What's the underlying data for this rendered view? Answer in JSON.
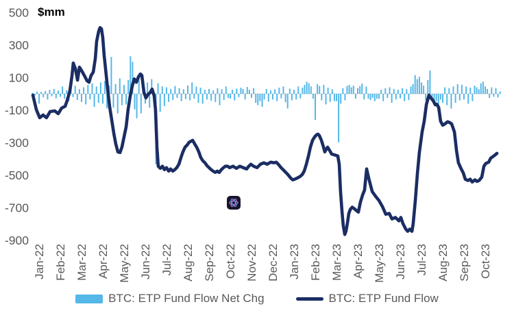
{
  "chart_data": {
    "type": "bar+line",
    "title": "",
    "unit_label": "$mm",
    "x_tick_labels": [
      "Jan-22",
      "Feb-22",
      "Mar-22",
      "Apr-22",
      "May-22",
      "Jun-22",
      "Jul-22",
      "Aug-22",
      "Sep-22",
      "Oct-22",
      "Nov-22",
      "Dec-22",
      "Jan-23",
      "Feb-23",
      "Mar-23",
      "Apr-23",
      "May-23",
      "Jun-23",
      "Jul-23",
      "Aug-23",
      "Sep-23",
      "Oct-23"
    ],
    "y_ticks": [
      500,
      300,
      100,
      -100,
      -300,
      -500,
      -700,
      -900
    ],
    "ylim": [
      -950,
      520
    ],
    "grid": "zero-line-only",
    "legend_position": "bottom-center",
    "style": {
      "bar_color": "#54b7e8",
      "line_color": "#1b2d63",
      "tick_text_color": "#595959",
      "zero_line_color": "#d9d9d9",
      "background": "#ffffff"
    },
    "series": [
      {
        "name": "BTC: ETP Fund Flow Net Chg",
        "type": "bar",
        "color": "#54b7e8",
        "x_start_month": -0.3,
        "x_step_month": 0.1,
        "values": [
          6,
          -10,
          14,
          -60,
          12,
          -22,
          18,
          -35,
          25,
          -15,
          30,
          -28,
          20,
          -18,
          45,
          -30,
          22,
          -45,
          35,
          -20,
          50,
          -38,
          28,
          -50,
          40,
          -65,
          55,
          -35,
          65,
          -80,
          45,
          -55,
          70,
          -60,
          80,
          -90,
          50,
          227,
          -85,
          60,
          -120,
          95,
          -70,
          55,
          -65,
          85,
          231,
          197,
          -95,
          -150,
          105,
          -120,
          80,
          -60,
          70,
          -85,
          90,
          -55,
          -433,
          65,
          -110,
          45,
          -75,
          40,
          -50,
          30,
          -38,
          48,
          -25,
          35,
          -45,
          28,
          -32,
          52,
          -40,
          70,
          -30,
          44,
          -55,
          38,
          -60,
          25,
          -35,
          30,
          -42,
          22,
          -50,
          35,
          -70,
          28,
          -38,
          45,
          -25,
          -30,
          25,
          -40,
          32,
          -20,
          38,
          30,
          -35,
          42,
          25,
          -25,
          35,
          -55,
          -70,
          -45,
          -80,
          -35,
          30,
          -48,
          22,
          -35,
          28,
          -45,
          38,
          -28,
          45,
          -52,
          -90,
          32,
          -40,
          25,
          -35,
          45,
          -28,
          38,
          55,
          75,
          65,
          45,
          -30,
          -160,
          60,
          48,
          -40,
          55,
          -65,
          38,
          -50,
          28,
          -45,
          -45,
          -298,
          -60,
          35,
          -40,
          48,
          55,
          40,
          50,
          -30,
          35,
          48,
          63,
          -35,
          45,
          -30,
          -38,
          -25,
          -45,
          -30,
          -30,
          25,
          -45,
          35,
          -25,
          40,
          -55,
          30,
          -35,
          25,
          -28,
          35,
          -45,
          28,
          -38,
          45,
          60,
          115,
          90,
          105,
          70,
          50,
          -40,
          85,
          143,
          -45,
          -60,
          -45,
          -80,
          -35,
          -55,
          40,
          -70,
          35,
          -90,
          45,
          -55,
          60,
          -40,
          55,
          -35,
          45,
          -60,
          38,
          -45,
          50,
          40,
          28,
          65,
          75,
          45,
          30,
          -25,
          40,
          -18,
          35,
          -22,
          15
        ]
      },
      {
        "name": "BTC: ETP Fund Flow",
        "type": "line",
        "color": "#1b2d63",
        "points": [
          [
            -0.29,
            -8
          ],
          [
            -0.13,
            -97
          ],
          [
            0.03,
            -147
          ],
          [
            0.19,
            -130
          ],
          [
            0.35,
            -147
          ],
          [
            0.52,
            -109
          ],
          [
            0.74,
            -105
          ],
          [
            0.9,
            -122
          ],
          [
            1.06,
            -88
          ],
          [
            1.23,
            -76
          ],
          [
            1.32,
            -42
          ],
          [
            1.45,
            17
          ],
          [
            1.55,
            113
          ],
          [
            1.61,
            189
          ],
          [
            1.71,
            155
          ],
          [
            1.81,
            84
          ],
          [
            1.9,
            164
          ],
          [
            2.0,
            143
          ],
          [
            2.13,
            113
          ],
          [
            2.26,
            80
          ],
          [
            2.35,
            71
          ],
          [
            2.45,
            113
          ],
          [
            2.55,
            134
          ],
          [
            2.65,
            218
          ],
          [
            2.71,
            323
          ],
          [
            2.81,
            386
          ],
          [
            2.87,
            407
          ],
          [
            2.94,
            399
          ],
          [
            3.0,
            344
          ],
          [
            3.06,
            239
          ],
          [
            3.13,
            155
          ],
          [
            3.23,
            29
          ],
          [
            3.32,
            -76
          ],
          [
            3.42,
            -160
          ],
          [
            3.52,
            -244
          ],
          [
            3.61,
            -307
          ],
          [
            3.71,
            -357
          ],
          [
            3.81,
            -361
          ],
          [
            3.9,
            -328
          ],
          [
            4.0,
            -265
          ],
          [
            4.1,
            -202
          ],
          [
            4.19,
            -97
          ],
          [
            4.29,
            -13
          ],
          [
            4.39,
            50
          ],
          [
            4.48,
            92
          ],
          [
            4.58,
            71
          ],
          [
            4.68,
            105
          ],
          [
            4.77,
            122
          ],
          [
            4.84,
            113
          ],
          [
            4.94,
            8
          ],
          [
            5.03,
            -25
          ],
          [
            5.13,
            -4
          ],
          [
            5.23,
            8
          ],
          [
            5.32,
            29
          ],
          [
            5.42,
            -13
          ],
          [
            5.48,
            -97
          ],
          [
            5.55,
            -328
          ],
          [
            5.61,
            -445
          ],
          [
            5.71,
            -458
          ],
          [
            5.81,
            -445
          ],
          [
            5.9,
            -466
          ],
          [
            6.0,
            -454
          ],
          [
            6.1,
            -475
          ],
          [
            6.19,
            -462
          ],
          [
            6.29,
            -475
          ],
          [
            6.39,
            -466
          ],
          [
            6.48,
            -454
          ],
          [
            6.58,
            -433
          ],
          [
            6.68,
            -391
          ],
          [
            6.77,
            -357
          ],
          [
            6.87,
            -328
          ],
          [
            6.97,
            -315
          ],
          [
            7.06,
            -298
          ],
          [
            7.16,
            -290
          ],
          [
            7.23,
            -286
          ],
          [
            7.32,
            -307
          ],
          [
            7.42,
            -328
          ],
          [
            7.52,
            -357
          ],
          [
            7.61,
            -391
          ],
          [
            7.71,
            -412
          ],
          [
            7.81,
            -424
          ],
          [
            7.9,
            -441
          ],
          [
            8.0,
            -454
          ],
          [
            8.1,
            -466
          ],
          [
            8.19,
            -475
          ],
          [
            8.29,
            -483
          ],
          [
            8.39,
            -475
          ],
          [
            8.48,
            -483
          ],
          [
            8.58,
            -466
          ],
          [
            8.68,
            -454
          ],
          [
            8.77,
            -445
          ],
          [
            8.87,
            -445
          ],
          [
            8.97,
            -454
          ],
          [
            9.13,
            -445
          ],
          [
            9.29,
            -458
          ],
          [
            9.45,
            -445
          ],
          [
            9.61,
            -454
          ],
          [
            9.77,
            -462
          ],
          [
            9.87,
            -445
          ],
          [
            9.97,
            -433
          ],
          [
            10.1,
            -445
          ],
          [
            10.26,
            -454
          ],
          [
            10.42,
            -433
          ],
          [
            10.58,
            -424
          ],
          [
            10.74,
            -433
          ],
          [
            10.9,
            -420
          ],
          [
            11.06,
            -424
          ],
          [
            11.16,
            -420
          ],
          [
            11.26,
            -433
          ],
          [
            11.39,
            -454
          ],
          [
            11.55,
            -475
          ],
          [
            11.71,
            -496
          ],
          [
            11.84,
            -517
          ],
          [
            11.94,
            -529
          ],
          [
            12.03,
            -525
          ],
          [
            12.16,
            -517
          ],
          [
            12.29,
            -508
          ],
          [
            12.39,
            -496
          ],
          [
            12.48,
            -475
          ],
          [
            12.58,
            -433
          ],
          [
            12.68,
            -382
          ],
          [
            12.77,
            -328
          ],
          [
            12.87,
            -286
          ],
          [
            12.97,
            -265
          ],
          [
            13.06,
            -252
          ],
          [
            13.13,
            -248
          ],
          [
            13.19,
            -256
          ],
          [
            13.29,
            -286
          ],
          [
            13.39,
            -328
          ],
          [
            13.45,
            -357
          ],
          [
            13.52,
            -340
          ],
          [
            13.58,
            -328
          ],
          [
            13.68,
            -349
          ],
          [
            13.77,
            -370
          ],
          [
            13.87,
            -374
          ],
          [
            13.97,
            -378
          ],
          [
            14.06,
            -382
          ],
          [
            14.13,
            -433
          ],
          [
            14.19,
            -601
          ],
          [
            14.26,
            -727
          ],
          [
            14.32,
            -811
          ],
          [
            14.39,
            -865
          ],
          [
            14.45,
            -844
          ],
          [
            14.52,
            -790
          ],
          [
            14.58,
            -735
          ],
          [
            14.65,
            -710
          ],
          [
            14.74,
            -697
          ],
          [
            14.84,
            -706
          ],
          [
            14.94,
            -718
          ],
          [
            15.03,
            -727
          ],
          [
            15.13,
            -664
          ],
          [
            15.23,
            -622
          ],
          [
            15.32,
            -592
          ],
          [
            15.42,
            -462
          ],
          [
            15.52,
            -520
          ],
          [
            15.68,
            -601
          ],
          [
            15.84,
            -630
          ],
          [
            16.0,
            -656
          ],
          [
            16.16,
            -693
          ],
          [
            16.32,
            -740
          ],
          [
            16.48,
            -735
          ],
          [
            16.61,
            -769
          ],
          [
            16.77,
            -760
          ],
          [
            16.94,
            -781
          ],
          [
            17.03,
            -760
          ],
          [
            17.13,
            -798
          ],
          [
            17.26,
            -832
          ],
          [
            17.35,
            -845
          ],
          [
            17.45,
            -832
          ],
          [
            17.55,
            -845
          ],
          [
            17.61,
            -798
          ],
          [
            17.71,
            -656
          ],
          [
            17.81,
            -487
          ],
          [
            17.9,
            -361
          ],
          [
            18.03,
            -235
          ],
          [
            18.13,
            -168
          ],
          [
            18.23,
            -67
          ],
          [
            18.35,
            -8
          ],
          [
            18.42,
            -21
          ],
          [
            18.55,
            -42
          ],
          [
            18.65,
            -67
          ],
          [
            18.71,
            -63
          ],
          [
            18.81,
            -84
          ],
          [
            18.9,
            -168
          ],
          [
            19.0,
            -193
          ],
          [
            19.1,
            -185
          ],
          [
            19.23,
            -172
          ],
          [
            19.32,
            -176
          ],
          [
            19.42,
            -185
          ],
          [
            19.55,
            -235
          ],
          [
            19.65,
            -349
          ],
          [
            19.74,
            -424
          ],
          [
            19.87,
            -462
          ],
          [
            19.97,
            -487
          ],
          [
            20.06,
            -525
          ],
          [
            20.19,
            -533
          ],
          [
            20.29,
            -525
          ],
          [
            20.39,
            -542
          ],
          [
            20.52,
            -529
          ],
          [
            20.61,
            -538
          ],
          [
            20.71,
            -533
          ],
          [
            20.84,
            -512
          ],
          [
            20.94,
            -445
          ],
          [
            21.03,
            -428
          ],
          [
            21.16,
            -420
          ],
          [
            21.26,
            -395
          ],
          [
            21.35,
            -387
          ],
          [
            21.48,
            -374
          ],
          [
            21.55,
            -366
          ]
        ]
      }
    ]
  },
  "legend": {
    "items": [
      {
        "label": "BTC: ETP Fund Flow Net Chg",
        "marker": "bar-swatch",
        "color": "#54b7e8"
      },
      {
        "label": "BTC: ETP Fund Flow",
        "marker": "line-swatch",
        "color": "#1b2d63"
      }
    ]
  },
  "watermark": {
    "icon": "chatgpt-logo"
  }
}
